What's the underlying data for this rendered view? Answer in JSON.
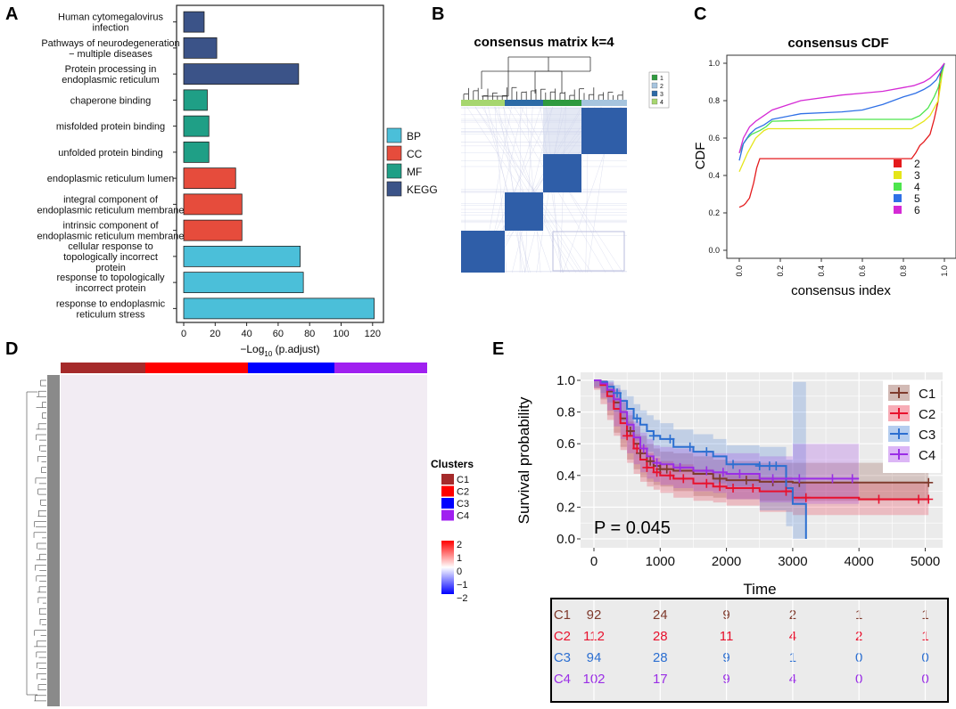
{
  "panel_labels": {
    "A": "A",
    "B": "B",
    "C": "C",
    "D": "D",
    "E": "E"
  },
  "colors": {
    "BP": "#4bbfd9",
    "CC": "#e64c3c",
    "MF": "#1f9f86",
    "KEGG": "#3b5388",
    "C1": "#7f3a2c",
    "C2": "#e8112d",
    "C3": "#2c6fd1",
    "C4": "#9a2ee6",
    "hm_c1": "#a52a2a",
    "hm_c2": "#ff0000",
    "hm_c3": "#0000ff",
    "hm_c4": "#a020f0",
    "cdf2": "#e41a1c",
    "cdf3": "#e5e51a",
    "cdf4": "#4de54d",
    "cdf5": "#2f70e6",
    "cdf6": "#d52ad5",
    "cm1": "#2f9a3f",
    "cm2": "#a6c4de",
    "cm3": "#2c6aa6",
    "cm4": "#a6d66f"
  },
  "chart_data": [
    {
      "type": "bar",
      "orientation": "horizontal",
      "panel": "A",
      "xlabel_prefix": "−Log",
      "xlabel_sub": "10",
      "xlabel_suffix": " (p.adjust)",
      "xlim": [
        0,
        125
      ],
      "xticks": [
        "0",
        "20",
        "40",
        "60",
        "80",
        "100",
        "120"
      ],
      "legend": [
        {
          "name": "BP",
          "key": "BP"
        },
        {
          "name": "CC",
          "key": "CC"
        },
        {
          "name": "MF",
          "key": "MF"
        },
        {
          "name": "KEGG",
          "key": "KEGG"
        }
      ],
      "categories": [
        {
          "lines": [
            "Human cytomegalovirus",
            "infection"
          ],
          "value": 13,
          "group": "KEGG"
        },
        {
          "lines": [
            "Pathways of neurodegeneration",
            "− multiple diseases"
          ],
          "value": 21,
          "group": "KEGG"
        },
        {
          "lines": [
            "Protein processing in",
            "endoplasmic reticulum"
          ],
          "value": 73,
          "group": "KEGG"
        },
        {
          "lines": [
            "chaperone binding"
          ],
          "value": 15,
          "group": "MF"
        },
        {
          "lines": [
            "misfolded protein binding"
          ],
          "value": 16,
          "group": "MF"
        },
        {
          "lines": [
            "unfolded protein binding"
          ],
          "value": 16,
          "group": "MF"
        },
        {
          "lines": [
            "endoplasmic reticulum lumen"
          ],
          "value": 33,
          "group": "CC"
        },
        {
          "lines": [
            "integral component of",
            "endoplasmic reticulum membrane"
          ],
          "value": 37,
          "group": "CC"
        },
        {
          "lines": [
            "intrinsic component of",
            "endoplasmic reticulum membrane"
          ],
          "value": 37,
          "group": "CC"
        },
        {
          "lines": [
            "cellular response to",
            "topologically incorrect",
            "protein"
          ],
          "value": 74,
          "group": "BP"
        },
        {
          "lines": [
            "response to topologically",
            "incorrect protein"
          ],
          "value": 76,
          "group": "BP"
        },
        {
          "lines": [
            "response to endoplasmic",
            "reticulum stress"
          ],
          "value": 121,
          "group": "BP"
        }
      ]
    },
    {
      "type": "heatmap",
      "panel": "B",
      "title": "consensus matrix k=4",
      "legend": [
        "1",
        "2",
        "3",
        "4"
      ]
    },
    {
      "type": "line",
      "panel": "C",
      "title": "consensus CDF",
      "xlabel": "consensus index",
      "ylabel": "CDF",
      "xlim": [
        0,
        1
      ],
      "ylim": [
        0,
        1
      ],
      "xticks": [
        "0.0",
        "0.2",
        "0.4",
        "0.6",
        "0.8",
        "1.0"
      ],
      "yticks": [
        "0.0",
        "0.2",
        "0.4",
        "0.6",
        "0.8",
        "1.0"
      ],
      "series": [
        {
          "name": "2",
          "key": "cdf2",
          "x": [
            0,
            0.02,
            0.03,
            0.05,
            0.07,
            0.085,
            0.1,
            0.13,
            0.5,
            0.84,
            0.86,
            0.88,
            0.9,
            0.93,
            0.95,
            0.97,
            0.98,
            1.0
          ],
          "y": [
            0.23,
            0.24,
            0.25,
            0.28,
            0.36,
            0.44,
            0.49,
            0.49,
            0.49,
            0.49,
            0.52,
            0.56,
            0.58,
            0.62,
            0.7,
            0.8,
            0.94,
            1.0
          ]
        },
        {
          "name": "3",
          "key": "cdf3",
          "x": [
            0,
            0.02,
            0.04,
            0.06,
            0.08,
            0.1,
            0.12,
            0.14,
            0.5,
            0.84,
            0.87,
            0.9,
            0.93,
            0.95,
            0.97,
            0.99,
            1.0
          ],
          "y": [
            0.42,
            0.47,
            0.52,
            0.56,
            0.6,
            0.62,
            0.64,
            0.65,
            0.65,
            0.65,
            0.67,
            0.69,
            0.72,
            0.76,
            0.8,
            0.95,
            1.0
          ]
        },
        {
          "name": "4",
          "key": "cdf4",
          "x": [
            0,
            0.02,
            0.04,
            0.06,
            0.08,
            0.1,
            0.13,
            0.16,
            0.5,
            0.84,
            0.88,
            0.92,
            0.95,
            0.97,
            0.99,
            1.0
          ],
          "y": [
            0.52,
            0.57,
            0.6,
            0.62,
            0.63,
            0.64,
            0.66,
            0.69,
            0.7,
            0.7,
            0.72,
            0.76,
            0.82,
            0.87,
            0.96,
            1.0
          ]
        },
        {
          "name": "5",
          "key": "cdf5",
          "x": [
            0,
            0.02,
            0.05,
            0.08,
            0.12,
            0.16,
            0.3,
            0.5,
            0.6,
            0.7,
            0.8,
            0.86,
            0.9,
            0.93,
            0.96,
            0.98,
            1.0
          ],
          "y": [
            0.48,
            0.57,
            0.62,
            0.65,
            0.67,
            0.7,
            0.73,
            0.74,
            0.75,
            0.78,
            0.82,
            0.84,
            0.86,
            0.88,
            0.91,
            0.95,
            1.0
          ]
        },
        {
          "name": "6",
          "key": "cdf6",
          "x": [
            0,
            0.02,
            0.05,
            0.08,
            0.12,
            0.16,
            0.3,
            0.5,
            0.6,
            0.7,
            0.8,
            0.85,
            0.9,
            0.93,
            0.96,
            0.98,
            1.0
          ],
          "y": [
            0.52,
            0.6,
            0.66,
            0.69,
            0.72,
            0.75,
            0.8,
            0.83,
            0.84,
            0.85,
            0.87,
            0.88,
            0.9,
            0.92,
            0.95,
            0.97,
            1.0
          ]
        }
      ]
    },
    {
      "type": "heatmap",
      "panel": "D",
      "legend_title": "Clusters",
      "clusters": [
        {
          "name": "C1",
          "key": "hm_c1"
        },
        {
          "name": "C2",
          "key": "hm_c2"
        },
        {
          "name": "C3",
          "key": "hm_c3"
        },
        {
          "name": "C4",
          "key": "hm_c4"
        }
      ],
      "color_scale_ticks": [
        "2",
        "1",
        "0",
        "−1",
        "−2"
      ]
    },
    {
      "type": "line",
      "panel": "E",
      "xlabel": "Time",
      "ylabel": "Survival probability",
      "xlim": [
        -150,
        5200
      ],
      "ylim": [
        -0.03,
        1.04
      ],
      "xticks": [
        0,
        1000,
        2000,
        3000,
        4000,
        5000
      ],
      "xtick_labels": [
        "0",
        "1000",
        "2000",
        "3000",
        "4000",
        "5000"
      ],
      "yticks": [
        0,
        0.2,
        0.4,
        0.6,
        0.8,
        1.0
      ],
      "ytick_labels": [
        "0.0",
        "0.2",
        "0.4",
        "0.6",
        "0.8",
        "1.0"
      ],
      "pvalue": "P = 0.045",
      "series": [
        {
          "name": "C1",
          "key": "C1",
          "x": [
            0,
            100,
            200,
            300,
            400,
            500,
            600,
            700,
            800,
            900,
            1000,
            1200,
            1500,
            1800,
            2000,
            2500,
            3000,
            4000,
            5050
          ],
          "y": [
            1.0,
            0.98,
            0.93,
            0.86,
            0.76,
            0.68,
            0.6,
            0.54,
            0.49,
            0.46,
            0.44,
            0.43,
            0.41,
            0.38,
            0.37,
            0.36,
            0.355,
            0.355,
            0.355
          ],
          "lo": [
            1.0,
            0.95,
            0.88,
            0.78,
            0.67,
            0.58,
            0.5,
            0.44,
            0.39,
            0.36,
            0.34,
            0.33,
            0.3,
            0.27,
            0.26,
            0.25,
            0.24,
            0.24,
            0.24
          ],
          "hi": [
            1.0,
            1.0,
            0.98,
            0.94,
            0.86,
            0.78,
            0.71,
            0.65,
            0.6,
            0.57,
            0.55,
            0.54,
            0.52,
            0.5,
            0.49,
            0.48,
            0.48,
            0.48,
            0.48
          ],
          "censors": [
            550,
            700,
            850,
            1000,
            1100,
            1900,
            2300,
            2700,
            3100,
            5050
          ]
        },
        {
          "name": "C2",
          "key": "C2",
          "x": [
            0,
            100,
            200,
            300,
            400,
            500,
            600,
            700,
            800,
            900,
            1000,
            1200,
            1500,
            1800,
            2000,
            2500,
            3000,
            4000,
            5050
          ],
          "y": [
            1.0,
            0.97,
            0.9,
            0.82,
            0.73,
            0.65,
            0.57,
            0.5,
            0.45,
            0.42,
            0.4,
            0.38,
            0.35,
            0.33,
            0.32,
            0.3,
            0.26,
            0.25,
            0.25
          ],
          "lo": [
            1.0,
            0.94,
            0.85,
            0.75,
            0.65,
            0.56,
            0.48,
            0.41,
            0.36,
            0.33,
            0.31,
            0.29,
            0.26,
            0.24,
            0.23,
            0.21,
            0.17,
            0.15,
            0.15
          ],
          "hi": [
            1.0,
            1.0,
            0.95,
            0.89,
            0.81,
            0.74,
            0.66,
            0.59,
            0.54,
            0.51,
            0.49,
            0.47,
            0.44,
            0.42,
            0.41,
            0.39,
            0.36,
            0.35,
            0.35
          ],
          "censors": [
            500,
            650,
            800,
            950,
            1150,
            1350,
            1700,
            1900,
            2100,
            2400,
            2900,
            3200,
            4300,
            4900,
            5050
          ]
        },
        {
          "name": "C3",
          "key": "C3",
          "x": [
            0,
            100,
            200,
            300,
            400,
            500,
            600,
            700,
            800,
            900,
            1000,
            1200,
            1500,
            1800,
            2000,
            2500,
            2900,
            3000,
            3200
          ],
          "y": [
            1.0,
            0.99,
            0.96,
            0.92,
            0.87,
            0.82,
            0.76,
            0.72,
            0.68,
            0.65,
            0.63,
            0.58,
            0.55,
            0.52,
            0.47,
            0.46,
            0.32,
            0.22,
            0.0
          ],
          "lo": [
            1.0,
            0.96,
            0.92,
            0.86,
            0.8,
            0.74,
            0.67,
            0.62,
            0.58,
            0.55,
            0.52,
            0.47,
            0.44,
            0.4,
            0.35,
            0.33,
            0.18,
            0.08,
            0.0
          ],
          "hi": [
            1.0,
            1.0,
            1.0,
            0.97,
            0.94,
            0.9,
            0.85,
            0.81,
            0.78,
            0.75,
            0.73,
            0.69,
            0.66,
            0.63,
            0.59,
            0.58,
            0.5,
            0.99,
            0.99
          ],
          "censors": [
            350,
            650,
            900,
            1150,
            1450,
            1700,
            2100,
            2500,
            2650,
            2750
          ]
        },
        {
          "name": "C4",
          "key": "C4",
          "x": [
            0,
            100,
            200,
            300,
            400,
            500,
            600,
            700,
            800,
            900,
            1000,
            1200,
            1500,
            1800,
            2000,
            2500,
            3000,
            4000
          ],
          "y": [
            1.0,
            0.98,
            0.94,
            0.88,
            0.8,
            0.72,
            0.64,
            0.57,
            0.52,
            0.48,
            0.47,
            0.45,
            0.43,
            0.42,
            0.41,
            0.38,
            0.38,
            0.38
          ],
          "lo": [
            1.0,
            0.95,
            0.89,
            0.81,
            0.71,
            0.63,
            0.54,
            0.47,
            0.42,
            0.38,
            0.36,
            0.34,
            0.32,
            0.3,
            0.29,
            0.25,
            0.23,
            0.22
          ],
          "hi": [
            1.0,
            1.0,
            0.99,
            0.95,
            0.88,
            0.81,
            0.74,
            0.67,
            0.63,
            0.59,
            0.58,
            0.57,
            0.55,
            0.54,
            0.54,
            0.52,
            0.6,
            0.6
          ],
          "censors": [
            750,
            950,
            1300,
            1700,
            1950,
            2200,
            2700,
            3100,
            3600,
            3900
          ]
        }
      ],
      "risk_table": {
        "rows": [
          {
            "name": "C1",
            "key": "C1",
            "values": [
              "92",
              "24",
              "9",
              "2",
              "1",
              "1"
            ]
          },
          {
            "name": "C2",
            "key": "C2",
            "values": [
              "112",
              "28",
              "11",
              "4",
              "2",
              "1"
            ]
          },
          {
            "name": "C3",
            "key": "C3",
            "values": [
              "94",
              "28",
              "9",
              "1",
              "0",
              "0"
            ]
          },
          {
            "name": "C4",
            "key": "C4",
            "values": [
              "102",
              "17",
              "9",
              "4",
              "0",
              "0"
            ]
          }
        ]
      }
    }
  ]
}
